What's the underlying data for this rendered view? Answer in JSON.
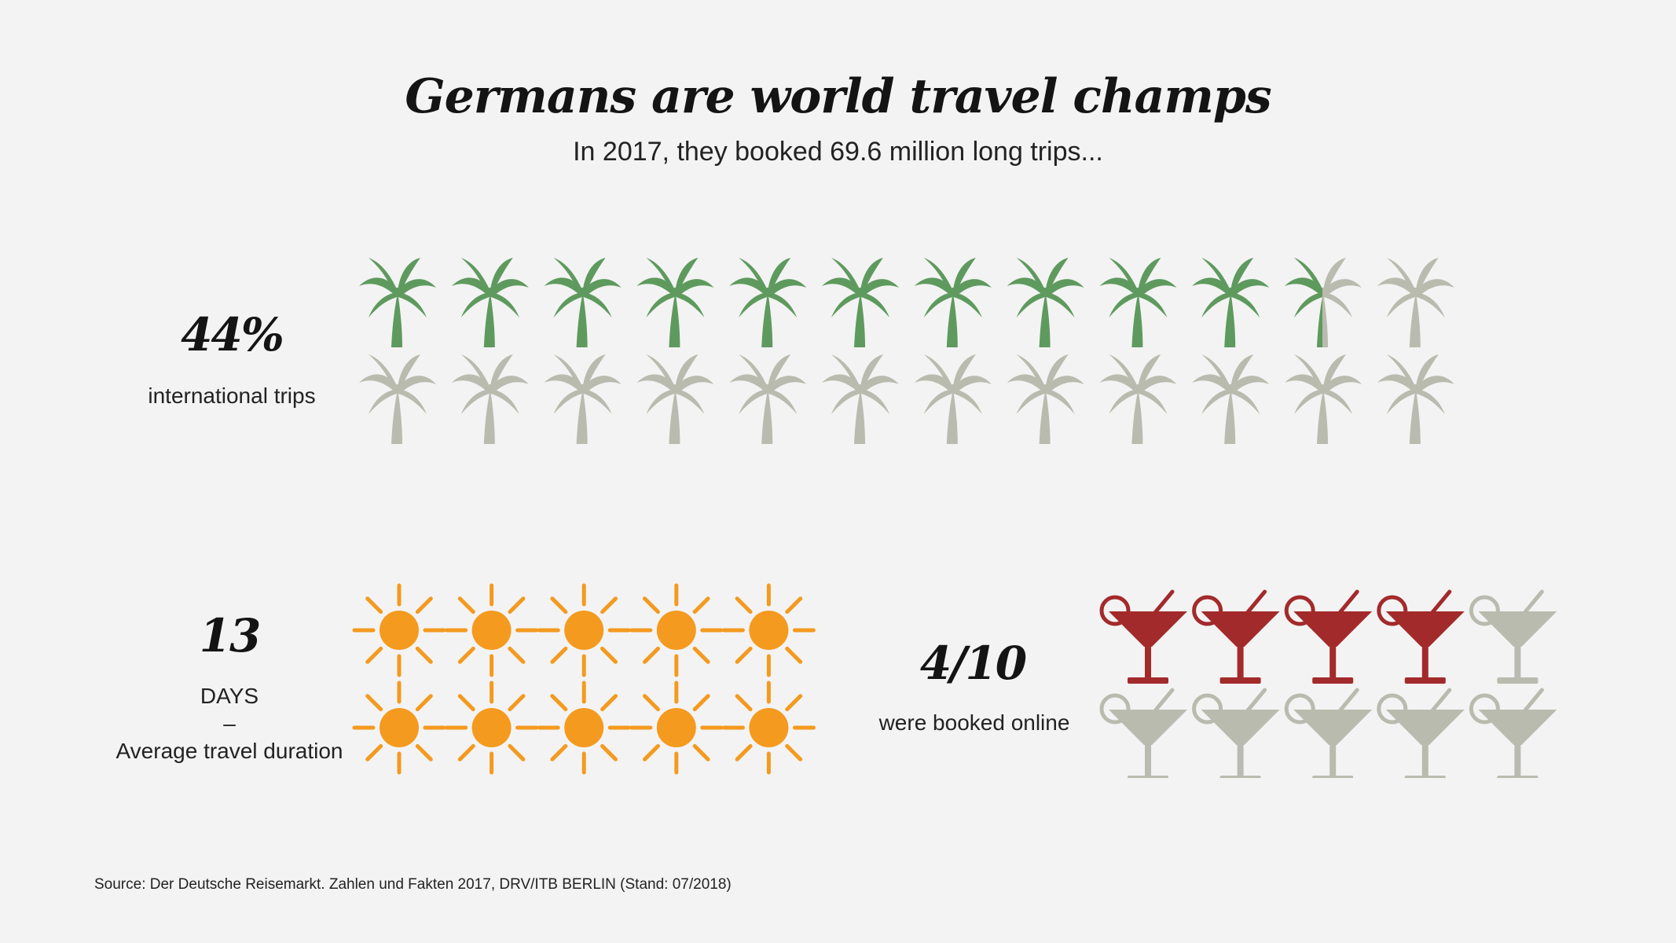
{
  "title": "Germans are world travel champs",
  "subtitle": "In 2017, they booked 69.6 million long trips...",
  "colors": {
    "palm_active": "#5e9a5e",
    "palm_inactive": "#b9bbae",
    "sun": "#f49a1f",
    "glass_active": "#a32a2b",
    "glass_inactive": "#b9bbae"
  },
  "chart_data": [
    {
      "type": "table",
      "unit_icon": "palm-tree-icon",
      "value_label": "44%",
      "label": "international trips",
      "value": 44,
      "total_icons": 24,
      "filled_icons": 10.5
    },
    {
      "type": "table",
      "unit_icon": "sun-icon",
      "value_label": "13",
      "label_line1": "DAYS",
      "label_line2": "–",
      "label_line3": "Average travel duration",
      "value": 13,
      "total_icons": 10,
      "filled_icons": 10
    },
    {
      "type": "table",
      "unit_icon": "cocktail-glass-icon",
      "value_label": "4/10",
      "label": "were booked online",
      "value": 0.4,
      "total_icons": 10,
      "filled_icons": 4
    }
  ],
  "source": "Source: Der Deutsche Reisemarkt. Zahlen und Fakten 2017, DRV/ITB BERLIN (Stand: 07/2018)"
}
